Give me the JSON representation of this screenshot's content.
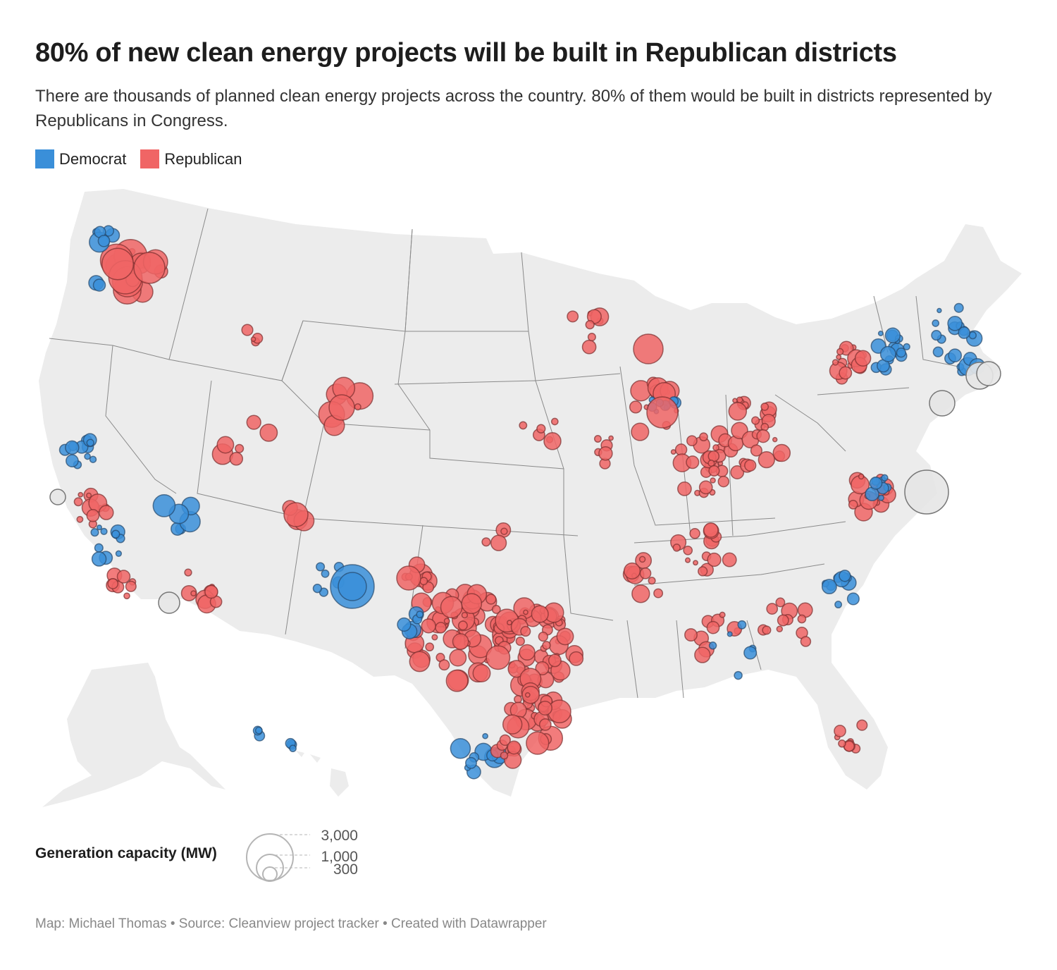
{
  "header": {
    "title": "80% of new clean energy projects will be built in Republican districts",
    "subtitle": "There are thousands of planned clean energy projects across the country. 80% of them would be built in districts represented by Republicans in Congress."
  },
  "legend": {
    "items": [
      {
        "label": "Democrat",
        "color": "#3a8fd9"
      },
      {
        "label": "Republican",
        "color": "#f06565"
      }
    ]
  },
  "size_legend": {
    "title": "Generation capacity (MW)",
    "values": [
      {
        "value": 3000,
        "label": "3,000"
      },
      {
        "value": 1000,
        "label": "1,000"
      },
      {
        "value": 300,
        "label": "300"
      }
    ]
  },
  "footer": {
    "text": "Map: Michael Thomas • Source: Cleanview project tracker • Created with Datawrapper"
  },
  "map_colors": {
    "land": "#ececec",
    "border": "#8a8a8a",
    "democrat": "#3a8fd9",
    "republican": "#f06565",
    "offshore": "#e6e6e6"
  }
}
